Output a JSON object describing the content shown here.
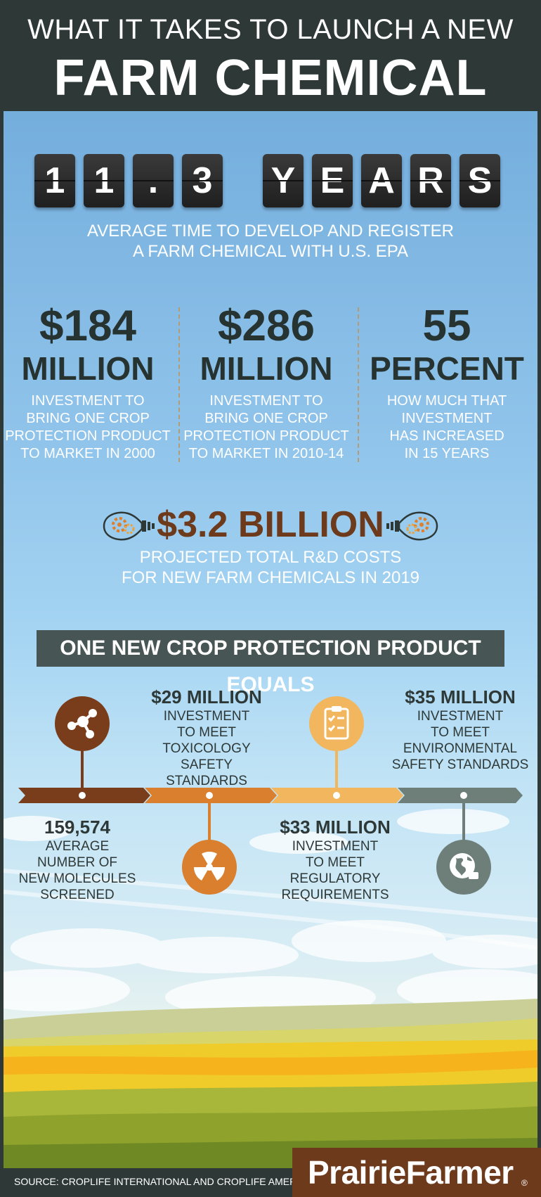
{
  "header": {
    "line1": "WHAT IT TAKES TO LAUNCH A NEW",
    "line2": "FARM CHEMICAL"
  },
  "counter": {
    "number_tiles": [
      "1",
      "1",
      ".",
      "3"
    ],
    "word_tiles": [
      "Y",
      "E",
      "A",
      "R",
      "S"
    ],
    "caption_line1": "AVERAGE TIME TO DEVELOP AND REGISTER",
    "caption_line2": "A FARM CHEMICAL WITH U.S. EPA"
  },
  "stats": [
    {
      "value": "$184",
      "unit": "MILLION",
      "desc": [
        "INVESTMENT TO",
        "BRING ONE CROP",
        "PROTECTION PRODUCT",
        "TO MARKET IN 2000"
      ]
    },
    {
      "value": "$286",
      "unit": "MILLION",
      "desc": [
        "INVESTMENT TO",
        "BRING ONE CROP",
        "PROTECTION PRODUCT",
        "TO MARKET IN 2010-14"
      ]
    },
    {
      "value": "55",
      "unit": "PERCENT",
      "desc": [
        "HOW MUCH THAT",
        "INVESTMENT",
        "HAS INCREASED",
        "IN 15 YEARS"
      ]
    }
  ],
  "rnd": {
    "amount": "$3.2 BILLION",
    "caption_line1": "PROJECTED TOTAL R&D COSTS",
    "caption_line2": "FOR NEW FARM CHEMICALS IN 2019"
  },
  "banner": "ONE NEW CROP PROTECTION PRODUCT EQUALS",
  "timeline": {
    "colors": [
      "#7a3d1b",
      "#d97f2d",
      "#f2b65f",
      "#6e7f7a"
    ],
    "items": [
      {
        "icon": "molecule-icon",
        "headline": "159,574",
        "lines": [
          "AVERAGE",
          "NUMBER OF",
          "NEW MOLECULES",
          "SCREENED"
        ]
      },
      {
        "icon": "radiation-icon",
        "headline": "$29 MILLION",
        "lines": [
          "INVESTMENT",
          "TO MEET",
          "TOXICOLOGY SAFETY",
          "STANDARDS"
        ]
      },
      {
        "icon": "clipboard-icon",
        "headline": "$33 MILLION",
        "lines": [
          "INVESTMENT",
          "TO MEET",
          "REGULATORY",
          "REQUIREMENTS"
        ]
      },
      {
        "icon": "globe-icon",
        "headline": "$35 MILLION",
        "lines": [
          "INVESTMENT",
          "TO MEET",
          "ENVIRONMENTAL",
          "SAFETY STANDARDS"
        ]
      }
    ]
  },
  "footer": {
    "source": "SOURCE: CROPLIFE INTERNATIONAL AND CROPLIFE AMERICA",
    "logo": "PrairieFarmer",
    "registered": "®"
  }
}
